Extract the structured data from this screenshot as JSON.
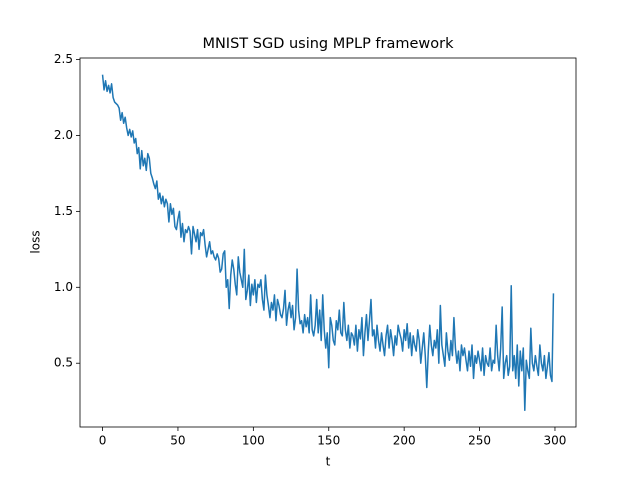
{
  "chart_data": {
    "type": "line",
    "title": "MNIST SGD using MPLP framework",
    "xlabel": "t",
    "ylabel": "loss",
    "xlim": [
      -14.95,
      313.95
    ],
    "ylim": [
      0.08,
      2.51
    ],
    "xticks": [
      0,
      50,
      100,
      150,
      200,
      250,
      300
    ],
    "yticks": [
      0.5,
      {
        "value": 1,
        "label": "1.0"
      },
      1.5,
      {
        "value": 2,
        "label": "2.0"
      },
      2.5
    ],
    "grid": false,
    "series": [
      {
        "name": "loss",
        "color": "#1f77b4",
        "x": [
          0,
          1,
          2,
          3,
          4,
          5,
          6,
          7,
          8,
          9,
          10,
          11,
          12,
          13,
          14,
          15,
          16,
          17,
          18,
          19,
          20,
          21,
          22,
          23,
          24,
          25,
          26,
          27,
          28,
          29,
          30,
          31,
          32,
          33,
          34,
          35,
          36,
          37,
          38,
          39,
          40,
          41,
          42,
          43,
          44,
          45,
          46,
          47,
          48,
          49,
          50,
          51,
          52,
          53,
          54,
          55,
          56,
          57,
          58,
          59,
          60,
          61,
          62,
          63,
          64,
          65,
          66,
          67,
          68,
          69,
          70,
          71,
          72,
          73,
          74,
          75,
          76,
          77,
          78,
          79,
          80,
          81,
          82,
          83,
          84,
          85,
          86,
          87,
          88,
          89,
          90,
          91,
          92,
          93,
          94,
          95,
          96,
          97,
          98,
          99,
          100,
          101,
          102,
          103,
          104,
          105,
          106,
          107,
          108,
          109,
          110,
          111,
          112,
          113,
          114,
          115,
          116,
          117,
          118,
          119,
          120,
          121,
          122,
          123,
          124,
          125,
          126,
          127,
          128,
          129,
          130,
          131,
          132,
          133,
          134,
          135,
          136,
          137,
          138,
          139,
          140,
          141,
          142,
          143,
          144,
          145,
          146,
          147,
          148,
          149,
          150,
          151,
          152,
          153,
          154,
          155,
          156,
          157,
          158,
          159,
          160,
          161,
          162,
          163,
          164,
          165,
          166,
          167,
          168,
          169,
          170,
          171,
          172,
          173,
          174,
          175,
          176,
          177,
          178,
          179,
          180,
          181,
          182,
          183,
          184,
          185,
          186,
          187,
          188,
          189,
          190,
          191,
          192,
          193,
          194,
          195,
          196,
          197,
          198,
          199,
          200,
          201,
          202,
          203,
          204,
          205,
          206,
          207,
          208,
          209,
          210,
          211,
          212,
          213,
          214,
          215,
          216,
          217,
          218,
          219,
          220,
          221,
          222,
          223,
          224,
          225,
          226,
          227,
          228,
          229,
          230,
          231,
          232,
          233,
          234,
          235,
          236,
          237,
          238,
          239,
          240,
          241,
          242,
          243,
          244,
          245,
          246,
          247,
          248,
          249,
          250,
          251,
          252,
          253,
          254,
          255,
          256,
          257,
          258,
          259,
          260,
          261,
          262,
          263,
          264,
          265,
          266,
          267,
          268,
          269,
          270,
          271,
          272,
          273,
          274,
          275,
          276,
          277,
          278,
          279,
          280,
          281,
          282,
          283,
          284,
          285,
          286,
          287,
          288,
          289,
          290,
          291,
          292,
          293,
          294,
          295,
          296,
          297,
          298,
          299
        ],
        "values": [
          2.4,
          2.3,
          2.36,
          2.29,
          2.33,
          2.28,
          2.34,
          2.25,
          2.22,
          2.21,
          2.2,
          2.18,
          2.1,
          2.15,
          2.08,
          2.12,
          2.05,
          2.0,
          2.04,
          1.99,
          2.03,
          1.95,
          1.98,
          1.88,
          1.92,
          1.78,
          1.9,
          1.8,
          1.85,
          1.77,
          1.88,
          1.85,
          1.75,
          1.72,
          1.68,
          1.65,
          1.7,
          1.58,
          1.62,
          1.55,
          1.6,
          1.53,
          1.58,
          1.55,
          1.43,
          1.55,
          1.48,
          1.52,
          1.4,
          1.38,
          1.45,
          1.5,
          1.33,
          1.42,
          1.3,
          1.38,
          1.36,
          1.4,
          1.37,
          1.22,
          1.4,
          1.35,
          1.3,
          1.38,
          1.25,
          1.36,
          1.34,
          1.38,
          1.28,
          1.2,
          1.25,
          1.3,
          1.22,
          1.24,
          1.2,
          1.18,
          1.22,
          1.19,
          1.1,
          1.12,
          1.22,
          1.24,
          1.0,
          1.05,
          0.86,
          1.08,
          1.18,
          1.12,
          1.02,
          0.95,
          1.2,
          1.1,
          1.05,
          1.0,
          1.25,
          0.92,
          0.98,
          1.08,
          0.88,
          1.02,
          0.95,
          1.05,
          0.9,
          1.02,
          1.0,
          1.05,
          0.92,
          0.85,
          1.08,
          0.95,
          0.88,
          0.8,
          0.9,
          0.85,
          0.95,
          0.78,
          0.92,
          0.88,
          0.82,
          0.8,
          0.86,
          0.98,
          0.75,
          0.85,
          0.9,
          0.8,
          0.88,
          0.72,
          0.8,
          1.12,
          0.85,
          0.76,
          0.78,
          0.7,
          0.82,
          0.74,
          0.8,
          0.7,
          0.95,
          0.72,
          0.68,
          0.75,
          0.92,
          0.7,
          0.85,
          0.65,
          0.95,
          0.72,
          0.6,
          0.7,
          0.47,
          0.8,
          0.75,
          0.65,
          0.62,
          0.78,
          0.72,
          0.85,
          0.7,
          0.68,
          0.9,
          0.72,
          0.65,
          0.75,
          0.6,
          0.7,
          0.68,
          0.62,
          0.75,
          0.58,
          0.72,
          0.66,
          0.8,
          0.55,
          0.7,
          0.82,
          0.65,
          0.78,
          0.92,
          0.68,
          0.72,
          0.6,
          0.75,
          0.65,
          0.58,
          0.7,
          0.62,
          0.55,
          0.68,
          0.75,
          0.6,
          0.72,
          0.65,
          0.55,
          0.68,
          0.62,
          0.75,
          0.7,
          0.66,
          0.58,
          0.72,
          0.65,
          0.76,
          0.6,
          0.7,
          0.55,
          0.68,
          0.62,
          0.58,
          0.72,
          0.65,
          0.5,
          0.6,
          0.7,
          0.55,
          0.34,
          0.58,
          0.75,
          0.62,
          0.55,
          0.65,
          0.6,
          0.72,
          0.5,
          0.88,
          0.62,
          0.55,
          0.48,
          0.7,
          0.58,
          0.52,
          0.65,
          0.55,
          0.8,
          0.6,
          0.5,
          0.58,
          0.45,
          0.62,
          0.55,
          0.6,
          0.52,
          0.45,
          0.58,
          0.48,
          0.62,
          0.4,
          0.55,
          0.5,
          0.58,
          0.52,
          0.45,
          0.6,
          0.42,
          0.55,
          0.5,
          0.48,
          0.6,
          0.45,
          0.52,
          0.5,
          0.75,
          0.55,
          0.45,
          0.6,
          0.87,
          0.4,
          0.5,
          0.55,
          0.42,
          0.48,
          1.01,
          0.45,
          0.55,
          0.4,
          0.62,
          0.35,
          0.58,
          0.45,
          0.6,
          0.19,
          0.52,
          0.45,
          0.4,
          0.73,
          0.5,
          0.45,
          0.55,
          0.48,
          0.42,
          0.62,
          0.5,
          0.45,
          0.55,
          0.4,
          0.48,
          0.57,
          0.42,
          0.38,
          0.96
        ]
      }
    ]
  }
}
